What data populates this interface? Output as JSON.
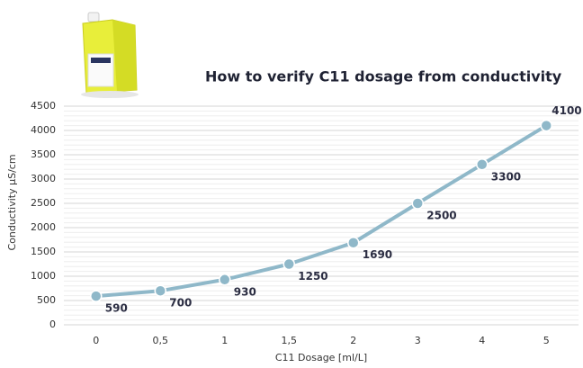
{
  "chart_data": {
    "type": "line",
    "title": "How to verify C11 dosage from conductivity",
    "x_label": "C11 Dosage [ml/L]",
    "y_label": "Conductivity µS/cm",
    "categories": [
      "0",
      "0,5",
      "1",
      "1,5",
      "2",
      "3",
      "4",
      "5"
    ],
    "values": [
      590,
      700,
      930,
      1250,
      1690,
      2500,
      3300,
      4100
    ],
    "color": "#8fb8c9",
    "ylim": [
      0,
      4500
    ],
    "yticks": [
      0,
      500,
      1000,
      1500,
      2000,
      2500,
      3000,
      3500,
      4000,
      4500
    ],
    "grid": true
  }
}
